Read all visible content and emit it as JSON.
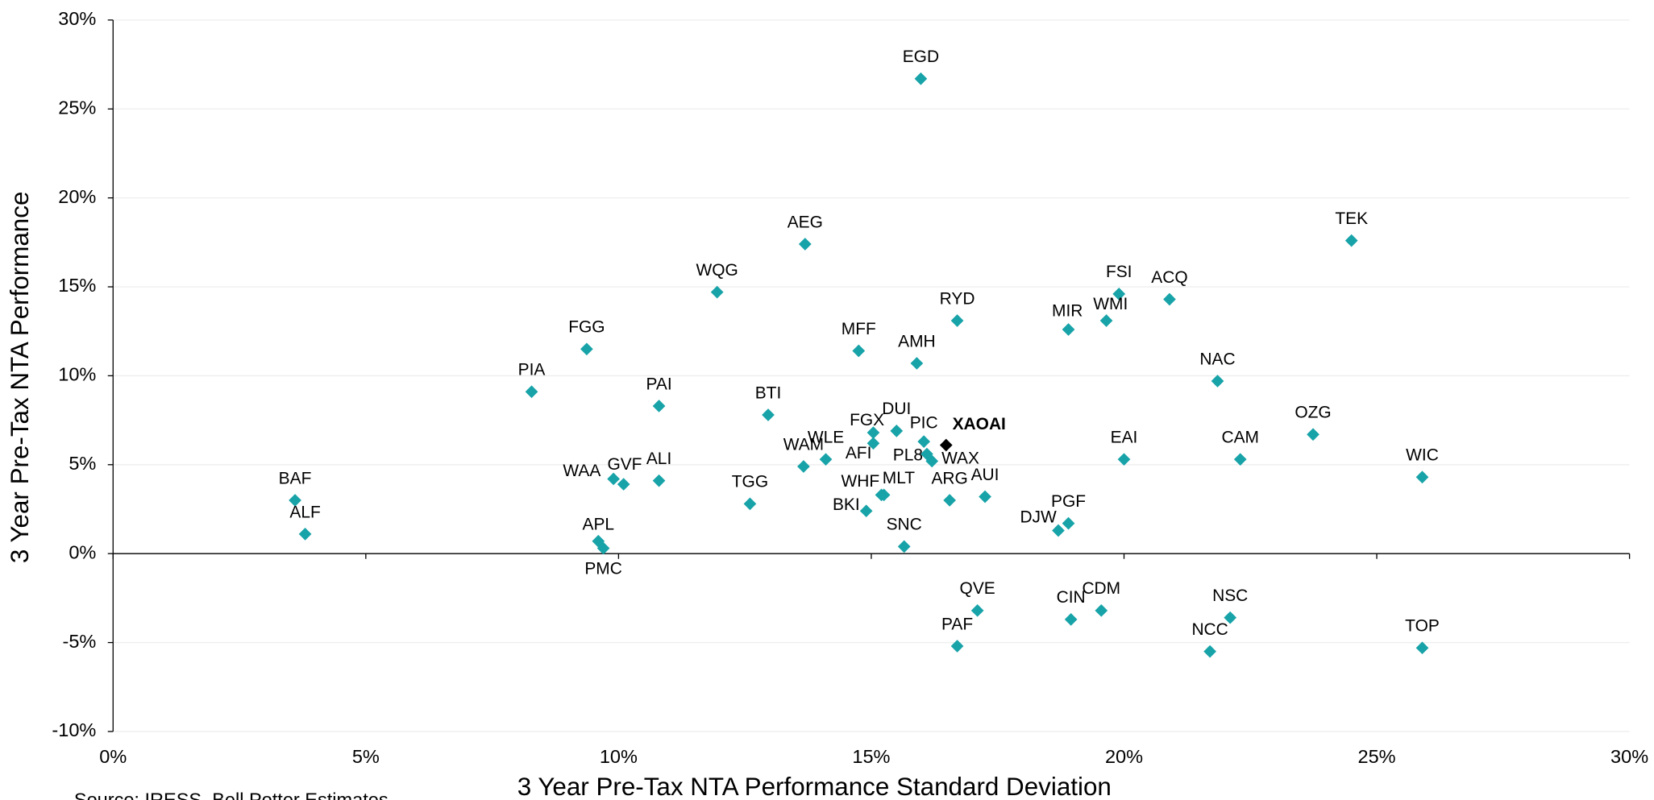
{
  "chart_data": {
    "type": "scatter",
    "x_label": "3 Year Pre-Tax NTA Performance Standard Deviation",
    "y_label": "3 Year Pre-Tax NTA Performance",
    "source": "Source: IRESS, Bell Potter Estimates",
    "color": "#17a3a8",
    "grid": true,
    "xlim": [
      0,
      30
    ],
    "ylim": [
      -10,
      30
    ],
    "xticks": [
      {
        "value": 0,
        "label": "0%"
      },
      {
        "value": 5,
        "label": "5%"
      },
      {
        "value": 10,
        "label": "10%"
      },
      {
        "value": 15,
        "label": "15%"
      },
      {
        "value": 20,
        "label": "20%"
      },
      {
        "value": 25,
        "label": "25%"
      },
      {
        "value": 30,
        "label": "30%"
      }
    ],
    "yticks": [
      {
        "value": -10,
        "label": "-10%"
      },
      {
        "value": -5,
        "label": "-5%"
      },
      {
        "value": 0,
        "label": "0%"
      },
      {
        "value": 5,
        "label": "5%"
      },
      {
        "value": 10,
        "label": "10%"
      },
      {
        "value": 15,
        "label": "15%"
      },
      {
        "value": 20,
        "label": "20%"
      },
      {
        "value": 25,
        "label": "25%"
      },
      {
        "value": 30,
        "label": "30%"
      }
    ],
    "labels": [
      "EGD",
      "AEG",
      "TEK",
      "WQG",
      "FSI",
      "ACQ",
      "RYD",
      "WMI",
      "MIR",
      "FGG",
      "MFF",
      "AMH",
      "NAC",
      "PIA",
      "PAI",
      "BTI",
      "FGX",
      "DUI",
      "OZG",
      "PIC",
      "AFI",
      "PL8",
      "WAX",
      "EAI",
      "CAM",
      "WLE",
      "WAM",
      "WIC",
      "WAA",
      "GVF",
      "ALI",
      "MLT",
      "AUI",
      "ARG",
      "BAF",
      "TGG",
      "BKI",
      "PGF",
      "DJW",
      "ALF",
      "APL",
      "PMC",
      "SNC",
      "QVE",
      "CDM",
      "NSC",
      "CIN",
      "TOP",
      "PAF",
      "NCC",
      "WHF"
    ],
    "x": [
      15.98,
      13.69,
      24.5,
      11.95,
      19.9,
      20.9,
      16.7,
      19.65,
      18.9,
      9.37,
      14.75,
      15.9,
      21.85,
      8.28,
      10.8,
      12.96,
      15.04,
      15.5,
      23.74,
      16.04,
      15.04,
      16.1,
      16.2,
      20.0,
      22.3,
      14.1,
      13.66,
      25.9,
      9.9,
      10.1,
      10.8,
      15.25,
      17.25,
      16.55,
      3.6,
      12.6,
      14.9,
      18.9,
      18.7,
      3.8,
      9.6,
      9.7,
      15.65,
      17.1,
      19.55,
      22.1,
      18.95,
      25.9,
      16.7,
      21.7,
      15.2
    ],
    "y": [
      26.7,
      17.4,
      17.6,
      14.7,
      14.6,
      14.3,
      13.1,
      13.1,
      12.6,
      11.5,
      11.4,
      10.7,
      9.7,
      9.1,
      8.3,
      7.8,
      6.8,
      6.9,
      6.7,
      6.3,
      6.2,
      5.6,
      5.2,
      5.3,
      5.3,
      5.3,
      4.9,
      4.3,
      4.2,
      3.9,
      4.1,
      3.3,
      3.2,
      3.0,
      3.0,
      2.8,
      2.4,
      1.7,
      1.3,
      1.1,
      0.7,
      0.3,
      0.4,
      -3.2,
      -3.2,
      -3.6,
      -3.7,
      -5.3,
      -5.2,
      -5.5,
      3.3
    ],
    "highlight": {
      "label": "XAOAI",
      "x": 16.48,
      "y": 6.1,
      "color": "#000000"
    }
  }
}
